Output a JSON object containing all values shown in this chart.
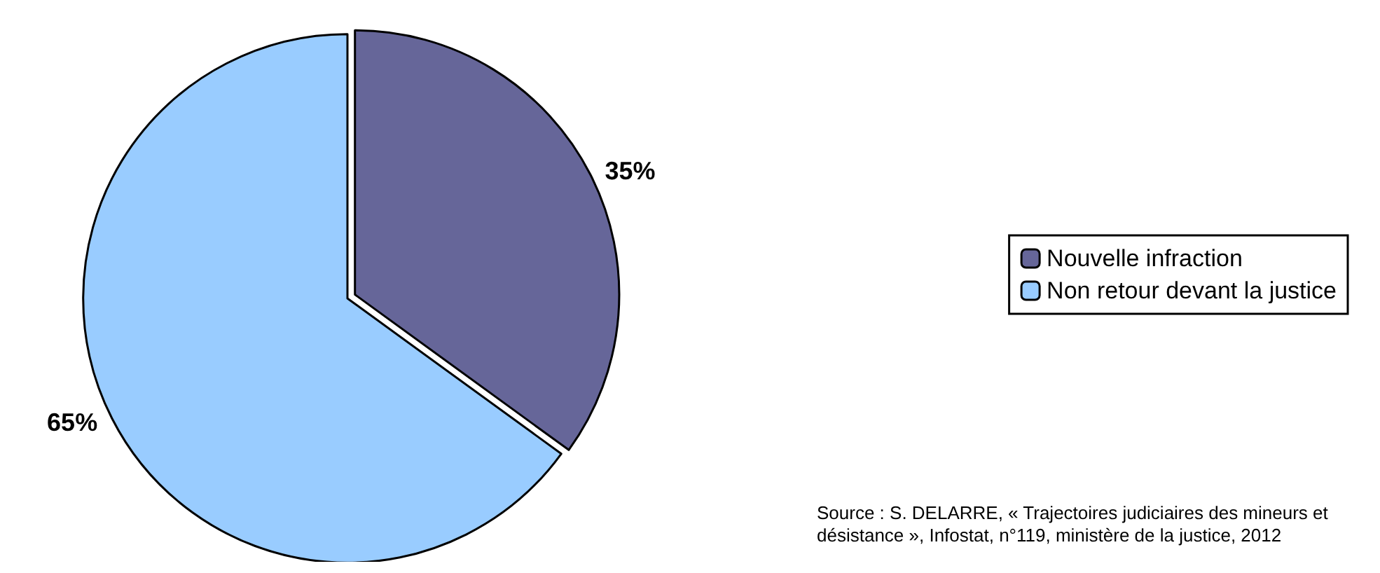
{
  "chart_data": {
    "type": "pie",
    "categories": [
      "Nouvelle infraction",
      "Non retour devant la justice"
    ],
    "values": [
      35,
      65
    ],
    "colors": [
      "#666699",
      "#99ccff"
    ],
    "value_labels": [
      "35%",
      "65%"
    ],
    "legend": "right",
    "annotations": [
      "Source : S. DELARRE, « Trajectoires judiciaires des mineurs et désistance », Infostat, n°119, ministère de la justice, 2012"
    ]
  }
}
